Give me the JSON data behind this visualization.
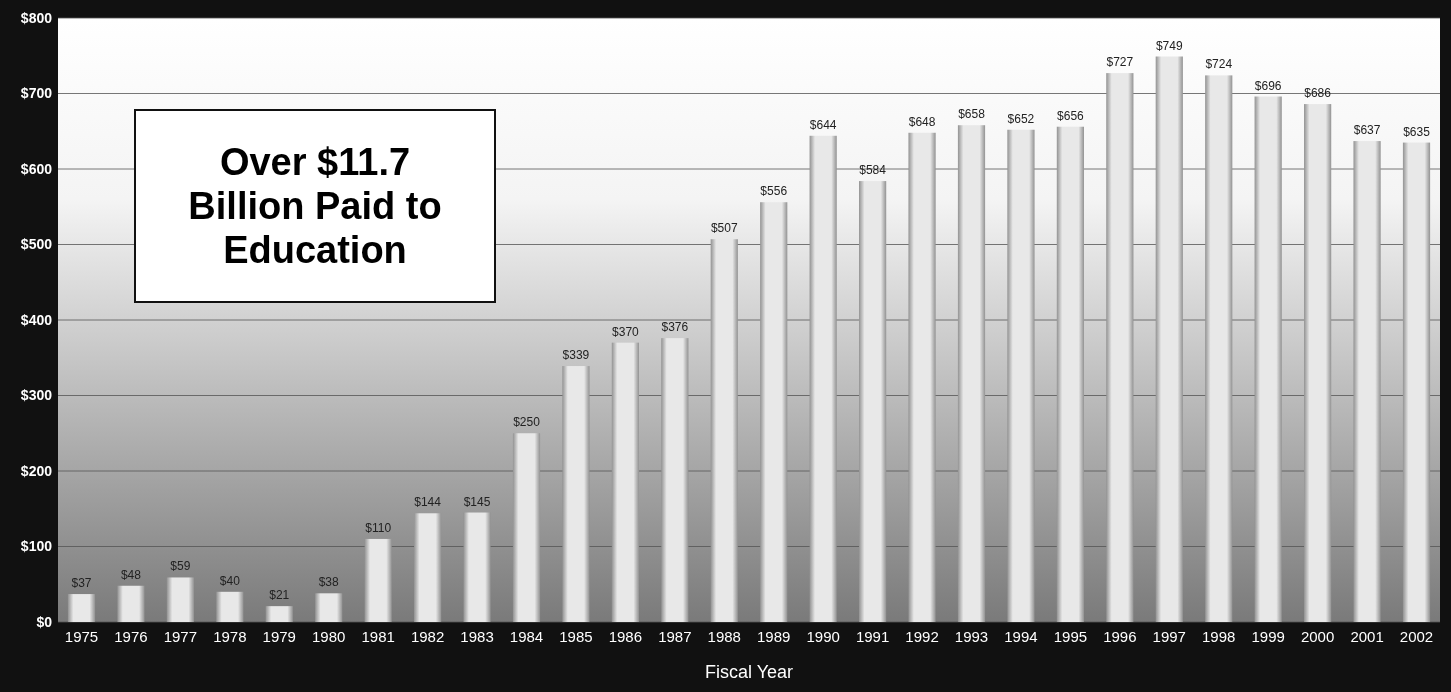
{
  "chart_data": {
    "type": "bar",
    "xlabel": "Fiscal Year",
    "categories": [
      "1975",
      "1976",
      "1977",
      "1978",
      "1979",
      "1980",
      "1981",
      "1982",
      "1983",
      "1984",
      "1985",
      "1986",
      "1987",
      "1988",
      "1989",
      "1990",
      "1991",
      "1992",
      "1993",
      "1994",
      "1995",
      "1996",
      "1997",
      "1998",
      "1999",
      "2000",
      "2001",
      "2002"
    ],
    "values": [
      37,
      48,
      59,
      40,
      21,
      38,
      110,
      144,
      145,
      250,
      339,
      370,
      376,
      507,
      556,
      644,
      584,
      648,
      658,
      652,
      656,
      727,
      749,
      724,
      696,
      686,
      637,
      635
    ],
    "value_labels": [
      "$37",
      "$48",
      "$59",
      "$40",
      "$21",
      "$38",
      "$110",
      "$144",
      "$145",
      "$250",
      "$339",
      "$370",
      "$376",
      "$507",
      "$556",
      "$644",
      "$584",
      "$648",
      "$658",
      "$652",
      "$656",
      "$727",
      "$749",
      "$724",
      "$696",
      "$686",
      "$637",
      "$635"
    ],
    "color": "#e8e8e8",
    "ylim": [
      0,
      800
    ],
    "yticks": [
      {
        "value": 0,
        "label": "$0"
      },
      {
        "value": 100,
        "label": "$100"
      },
      {
        "value": 200,
        "label": "$200"
      },
      {
        "value": 300,
        "label": "$300"
      },
      {
        "value": 400,
        "label": "$400"
      },
      {
        "value": 500,
        "label": "$500"
      },
      {
        "value": 600,
        "label": "$600"
      },
      {
        "value": 700,
        "label": "$700"
      },
      {
        "value": 800,
        "label": "$800"
      }
    ],
    "grid": "y",
    "annotations": [
      "Over $11.7 Billion Paid to Education"
    ]
  }
}
